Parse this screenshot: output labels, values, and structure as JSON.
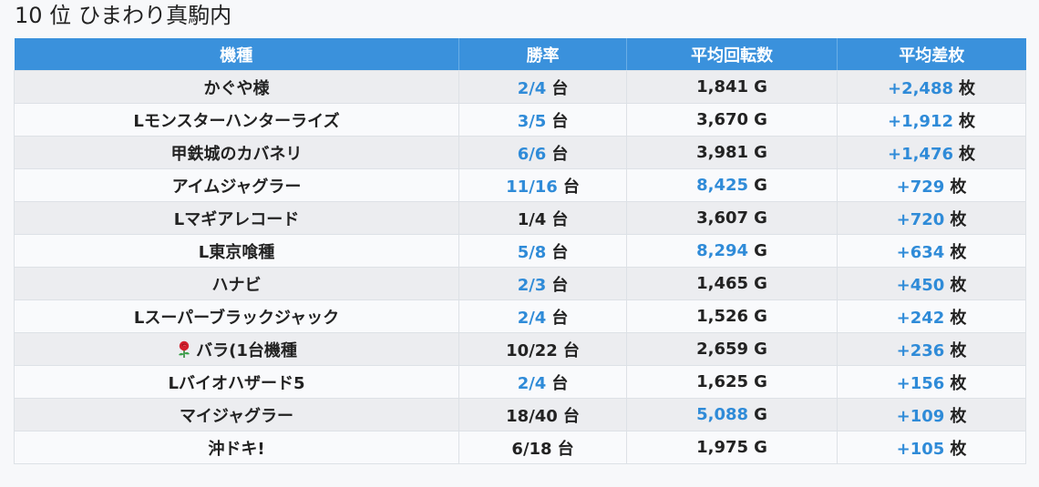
{
  "header": {
    "rank": "10 位",
    "store": "ひまわり真駒内"
  },
  "table": {
    "columns": [
      "機種",
      "勝率",
      "平均回転数",
      "平均差枚"
    ],
    "win_unit": "台",
    "spin_unit": "G",
    "diff_unit": "枚",
    "rows": [
      {
        "name": "かぐや様",
        "icon": "",
        "win": "2/4",
        "win_hl": true,
        "spins": "1,841",
        "spins_hl": false,
        "diff": "+2,488"
      },
      {
        "name": "Lモンスターハンターライズ",
        "icon": "",
        "win": "3/5",
        "win_hl": true,
        "spins": "3,670",
        "spins_hl": false,
        "diff": "+1,912"
      },
      {
        "name": "甲鉄城のカバネリ",
        "icon": "",
        "win": "6/6",
        "win_hl": true,
        "spins": "3,981",
        "spins_hl": false,
        "diff": "+1,476"
      },
      {
        "name": "アイムジャグラー",
        "icon": "",
        "win": "11/16",
        "win_hl": true,
        "spins": "8,425",
        "spins_hl": true,
        "diff": "+729"
      },
      {
        "name": "Lマギアレコード",
        "icon": "",
        "win": "1/4",
        "win_hl": false,
        "spins": "3,607",
        "spins_hl": false,
        "diff": "+720"
      },
      {
        "name": "L東京喰種",
        "icon": "",
        "win": "5/8",
        "win_hl": true,
        "spins": "8,294",
        "spins_hl": true,
        "diff": "+634"
      },
      {
        "name": "ハナビ",
        "icon": "",
        "win": "2/3",
        "win_hl": true,
        "spins": "1,465",
        "spins_hl": false,
        "diff": "+450"
      },
      {
        "name": "Lスーパーブラックジャック",
        "icon": "",
        "win": "2/4",
        "win_hl": true,
        "spins": "1,526",
        "spins_hl": false,
        "diff": "+242"
      },
      {
        "name": "バラ(1台機種",
        "icon": "rose-icon",
        "win": "10/22",
        "win_hl": false,
        "spins": "2,659",
        "spins_hl": false,
        "diff": "+236"
      },
      {
        "name": "Lバイオハザード5",
        "icon": "",
        "win": "2/4",
        "win_hl": true,
        "spins": "1,625",
        "spins_hl": false,
        "diff": "+156"
      },
      {
        "name": "マイジャグラー",
        "icon": "",
        "win": "18/40",
        "win_hl": false,
        "spins": "5,088",
        "spins_hl": true,
        "diff": "+109"
      },
      {
        "name": "沖ドキ!",
        "icon": "",
        "win": "6/18",
        "win_hl": false,
        "spins": "1,975",
        "spins_hl": false,
        "diff": "+105"
      }
    ]
  },
  "colors": {
    "header_bg": "#3a91dc",
    "highlight": "#2f8bd8",
    "row_odd": "#ecedf0",
    "row_even": "#f9fafc"
  }
}
